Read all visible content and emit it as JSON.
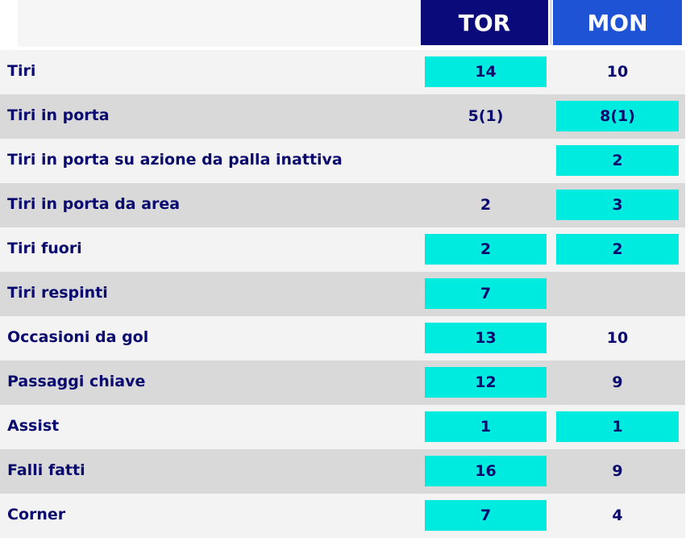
{
  "header": {
    "home_team": "TOR",
    "away_team": "MON"
  },
  "colors": {
    "home_header": "#0a0a7a",
    "away_header": "#1f53d6",
    "highlight": "#00ebe0",
    "text": "#0a0a6e"
  },
  "rows": [
    {
      "label": "Tiri",
      "home": "14",
      "away": "10",
      "home_hl": true,
      "away_hl": false
    },
    {
      "label": "Tiri in porta",
      "home": "5(1)",
      "away": "8(1)",
      "home_hl": false,
      "away_hl": true
    },
    {
      "label": "Tiri in porta su azione da palla inattiva",
      "home": "",
      "away": "2",
      "home_hl": false,
      "away_hl": true
    },
    {
      "label": "Tiri in porta da area",
      "home": "2",
      "away": "3",
      "home_hl": false,
      "away_hl": true
    },
    {
      "label": "Tiri fuori",
      "home": "2",
      "away": "2",
      "home_hl": true,
      "away_hl": true
    },
    {
      "label": "Tiri respinti",
      "home": "7",
      "away": "",
      "home_hl": true,
      "away_hl": false
    },
    {
      "label": "Occasioni da gol",
      "home": "13",
      "away": "10",
      "home_hl": true,
      "away_hl": false
    },
    {
      "label": "Passaggi chiave",
      "home": "12",
      "away": "9",
      "home_hl": true,
      "away_hl": false
    },
    {
      "label": "Assist",
      "home": "1",
      "away": "1",
      "home_hl": true,
      "away_hl": true
    },
    {
      "label": "Falli fatti",
      "home": "16",
      "away": "9",
      "home_hl": true,
      "away_hl": false
    },
    {
      "label": "Corner",
      "home": "7",
      "away": "4",
      "home_hl": true,
      "away_hl": false
    }
  ]
}
